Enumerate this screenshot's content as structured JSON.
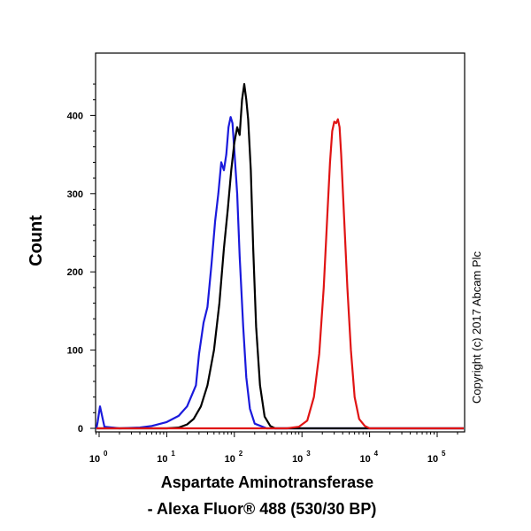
{
  "chart_data": {
    "type": "line",
    "x_scale": "log",
    "xlim": [
      0.5,
      300000
    ],
    "ylim": [
      0,
      450
    ],
    "x_ticks": [
      {
        "value": 1,
        "base": "10",
        "exp": "0"
      },
      {
        "value": 10,
        "base": "10",
        "exp": "1"
      },
      {
        "value": 100,
        "base": "10",
        "exp": "2"
      },
      {
        "value": 1000,
        "base": "10",
        "exp": "3"
      },
      {
        "value": 10000,
        "base": "10",
        "exp": "4"
      },
      {
        "value": 100000,
        "base": "10",
        "exp": "5"
      }
    ],
    "y_ticks": [
      {
        "value": 0,
        "label": "0"
      },
      {
        "value": 100,
        "label": "100"
      },
      {
        "value": 200,
        "label": "200"
      },
      {
        "value": 300,
        "label": "300"
      },
      {
        "value": 400,
        "label": "400"
      }
    ],
    "xlabel_line1": "Aspartate Aminotransferase",
    "xlabel_line2": "- Alexa Fluor® 488 (530/30 BP)",
    "ylabel": "Count",
    "copyright": "Copyright (c) 2017 Abcam Plc",
    "series": [
      {
        "color": "#1a1adc",
        "points": [
          [
            0.5,
            0
          ],
          [
            0.95,
            8
          ],
          [
            1.03,
            28
          ],
          [
            1.2,
            2
          ],
          [
            2,
            0
          ],
          [
            4,
            1
          ],
          [
            6,
            3
          ],
          [
            10,
            8
          ],
          [
            15,
            16
          ],
          [
            20,
            28
          ],
          [
            27,
            55
          ],
          [
            30,
            95
          ],
          [
            35,
            135
          ],
          [
            40,
            155
          ],
          [
            46,
            210
          ],
          [
            52,
            265
          ],
          [
            58,
            300
          ],
          [
            64,
            340
          ],
          [
            70,
            330
          ],
          [
            76,
            350
          ],
          [
            82,
            385
          ],
          [
            88,
            398
          ],
          [
            94,
            390
          ],
          [
            100,
            355
          ],
          [
            110,
            300
          ],
          [
            120,
            220
          ],
          [
            135,
            130
          ],
          [
            150,
            65
          ],
          [
            170,
            25
          ],
          [
            200,
            6
          ],
          [
            300,
            0
          ],
          [
            1000,
            0
          ],
          [
            300000,
            0
          ]
        ]
      },
      {
        "color": "#000000",
        "points": [
          [
            0.5,
            0
          ],
          [
            10,
            0
          ],
          [
            15,
            1
          ],
          [
            20,
            5
          ],
          [
            25,
            12
          ],
          [
            32,
            28
          ],
          [
            40,
            55
          ],
          [
            50,
            100
          ],
          [
            60,
            160
          ],
          [
            70,
            230
          ],
          [
            80,
            280
          ],
          [
            90,
            330
          ],
          [
            100,
            365
          ],
          [
            110,
            385
          ],
          [
            120,
            375
          ],
          [
            130,
            420
          ],
          [
            140,
            440
          ],
          [
            150,
            420
          ],
          [
            160,
            395
          ],
          [
            175,
            330
          ],
          [
            190,
            230
          ],
          [
            210,
            130
          ],
          [
            240,
            55
          ],
          [
            280,
            15
          ],
          [
            340,
            3
          ],
          [
            400,
            0
          ],
          [
            300000,
            0
          ]
        ]
      },
      {
        "color": "#e01414",
        "points": [
          [
            0.5,
            0
          ],
          [
            600,
            0
          ],
          [
            900,
            2
          ],
          [
            1200,
            10
          ],
          [
            1500,
            40
          ],
          [
            1800,
            95
          ],
          [
            2100,
            180
          ],
          [
            2400,
            280
          ],
          [
            2600,
            340
          ],
          [
            2800,
            380
          ],
          [
            3000,
            392
          ],
          [
            3200,
            390
          ],
          [
            3400,
            395
          ],
          [
            3600,
            385
          ],
          [
            3800,
            350
          ],
          [
            4200,
            270
          ],
          [
            4700,
            180
          ],
          [
            5300,
            100
          ],
          [
            6000,
            40
          ],
          [
            7000,
            12
          ],
          [
            8500,
            3
          ],
          [
            10000,
            0
          ],
          [
            300000,
            0
          ]
        ]
      }
    ]
  }
}
